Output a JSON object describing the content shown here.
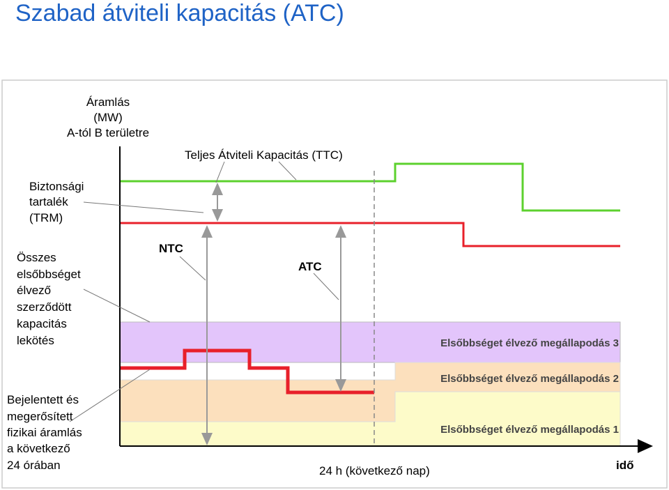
{
  "header": {
    "title": "Szabad átviteli kapacitás (ATC)"
  },
  "labels": {
    "y_axis": [
      "Áramlás",
      "(MW)",
      "A-tól B területre"
    ],
    "ttc": "Teljes Átviteli Kapacitás (TTC)",
    "trm": [
      "Biztonsági",
      "tartalék",
      "(TRM)"
    ],
    "contracts": [
      "Összes",
      "elsőbbséget",
      "élvező",
      "szerződött",
      "kapacitás",
      "lekötés"
    ],
    "ntc": "NTC",
    "atc": "ATC",
    "flow": [
      "Bejelentett és",
      "megerősített",
      "fizikai áramlás",
      "a következő",
      "24 órában"
    ],
    "agreement_3": "Elsőbbséget élvező megállapodás 3",
    "agreement_2": "Elsőbbséget élvező megállapodás 2",
    "agreement_1": "Elsőbbséget élvező megállapodás 1",
    "period": "24 h (következő nap)",
    "x_axis": "idő"
  }
}
